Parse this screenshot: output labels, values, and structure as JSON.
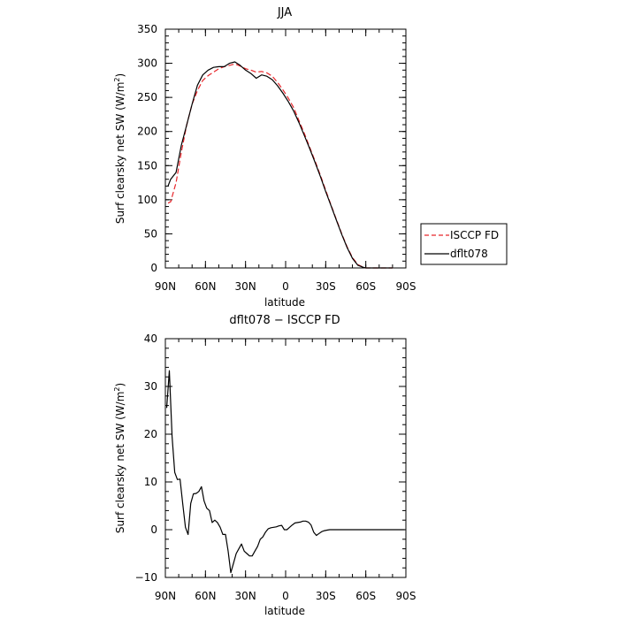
{
  "chart_data": [
    {
      "type": "line",
      "title": "JJA",
      "xlabel": "latitude",
      "ylabel": "Surf clearsky net SW (W/m",
      "ylabel_sup": "2",
      "ylabel_close": ")",
      "xlim": [
        90,
        -90
      ],
      "ylim": [
        0,
        350
      ],
      "x_ticks": [
        90,
        60,
        30,
        0,
        -30,
        -60,
        -90
      ],
      "x_tick_labels": [
        "90N",
        "60N",
        "30N",
        "0",
        "30S",
        "60S",
        "90S"
      ],
      "y_ticks": [
        0,
        50,
        100,
        150,
        200,
        250,
        300,
        350
      ],
      "y_tick_labels": [
        "0",
        "50",
        "100",
        "150",
        "200",
        "250",
        "300",
        "350"
      ],
      "legend_position": "right",
      "series": [
        {
          "name": "ISCCP FD",
          "color": "#e8262b",
          "dash": "dashed",
          "x": [
            88,
            86,
            82,
            78,
            74,
            70,
            66,
            62,
            58,
            54,
            50,
            46,
            42,
            38,
            34,
            30,
            26,
            22,
            18,
            14,
            10,
            6,
            2,
            -2,
            -6,
            -10,
            -14,
            -18,
            -22,
            -26,
            -30,
            -34,
            -38,
            -42,
            -46,
            -50,
            -54,
            -58,
            -60,
            -62,
            -64,
            -66,
            -68,
            -70,
            -72,
            -74,
            -76,
            -78,
            -80
          ],
          "y": [
            95,
            97,
            125,
            170,
            210,
            240,
            260,
            275,
            282,
            287,
            292,
            295,
            297,
            299,
            296,
            292,
            290,
            287,
            288,
            286,
            281,
            272,
            261,
            249,
            235,
            216,
            197,
            177,
            157,
            136,
            114,
            92,
            71,
            50,
            31,
            15,
            5,
            1,
            0,
            0,
            0,
            0,
            0,
            0,
            0,
            0,
            0,
            0,
            0
          ]
        },
        {
          "name": "dflt078",
          "color": "#000000",
          "dash": "solid",
          "x": [
            88,
            86,
            82,
            78,
            74,
            70,
            66,
            62,
            58,
            54,
            50,
            46,
            42,
            38,
            34,
            30,
            26,
            22,
            18,
            14,
            10,
            6,
            2,
            -2,
            -6,
            -10,
            -14,
            -18,
            -22,
            -26,
            -30,
            -34,
            -38,
            -42,
            -46,
            -50,
            -54,
            -58,
            -60,
            -62,
            -64,
            -66,
            -68,
            -70,
            -72,
            -74,
            -76,
            -78,
            -80
          ],
          "y": [
            120,
            130,
            140,
            180,
            210,
            240,
            268,
            283,
            290,
            294,
            295,
            295,
            300,
            302,
            297,
            290,
            285,
            278,
            283,
            281,
            276,
            267,
            256,
            244,
            230,
            213,
            194,
            175,
            155,
            134,
            112,
            91,
            70,
            49,
            30,
            14,
            4,
            1,
            0,
            0,
            0,
            0,
            0,
            0,
            0,
            0,
            0,
            0,
            0
          ]
        }
      ]
    },
    {
      "type": "line",
      "title": "dflt078 − ISCCP FD",
      "xlabel": "latitude",
      "ylabel": "Surf clearsky net SW (W/m",
      "ylabel_sup": "2",
      "ylabel_close": ")",
      "xlim": [
        90,
        -90
      ],
      "ylim": [
        -10,
        40
      ],
      "x_ticks": [
        90,
        60,
        30,
        0,
        -30,
        -60,
        -90
      ],
      "x_tick_labels": [
        "90N",
        "60N",
        "30N",
        "0",
        "30S",
        "60S",
        "90S"
      ],
      "y_ticks": [
        -10,
        0,
        10,
        20,
        30,
        40
      ],
      "y_tick_labels": [
        "−10",
        "0",
        "10",
        "20",
        "30",
        "40"
      ],
      "series": [
        {
          "color": "#000000",
          "dash": "solid",
          "x": [
            89,
            87,
            85,
            83,
            81,
            79,
            77,
            75,
            73,
            71,
            69,
            67,
            65,
            63,
            61,
            59,
            57,
            55,
            53,
            51,
            49,
            47,
            45,
            43,
            41,
            39,
            37,
            35,
            33,
            31,
            29,
            27,
            25,
            23,
            21,
            19,
            17,
            15,
            13,
            11,
            9,
            7,
            5,
            3,
            1,
            -1,
            -3,
            -5,
            -7,
            -9,
            -11,
            -13,
            -15,
            -17,
            -19,
            -21,
            -23,
            -25,
            -27,
            -29,
            -31,
            -33,
            -35,
            -37,
            -39,
            -41,
            -43,
            -45,
            -47,
            -49,
            -51,
            -53,
            -55,
            -57,
            -59,
            -61,
            -63,
            -65,
            -67,
            -69,
            -71,
            -73,
            -75,
            -77,
            -79,
            -81,
            -83,
            -85,
            -87,
            -89
          ],
          "y": [
            25.5,
            33.3,
            19.5,
            12.0,
            10.5,
            10.6,
            5.5,
            0.5,
            -1.0,
            5.5,
            7.5,
            7.6,
            8.0,
            9.0,
            6.0,
            4.5,
            4.0,
            1.5,
            2.0,
            1.5,
            0.5,
            -1.0,
            -1.0,
            -4.5,
            -9.0,
            -7.0,
            -5.0,
            -4.0,
            -3.0,
            -4.5,
            -5.0,
            -5.5,
            -5.5,
            -4.5,
            -3.5,
            -2.0,
            -1.5,
            -0.5,
            0.2,
            0.4,
            0.5,
            0.6,
            0.8,
            0.9,
            0.0,
            0.0,
            0.5,
            1.0,
            1.4,
            1.5,
            1.6,
            1.8,
            1.8,
            1.6,
            1.0,
            -0.5,
            -1.2,
            -0.8,
            -0.4,
            -0.2,
            -0.1,
            0.0,
            0.0,
            0.0,
            0.0,
            0.0,
            0.0,
            0.0,
            0.0,
            0.0,
            0.0,
            0.0,
            0.0,
            0.0,
            0.0,
            0.0,
            0.0,
            0.0,
            0.0,
            0.0,
            0.0,
            0.0,
            0.0,
            0.0,
            0.0,
            0.0,
            0.0,
            0.0,
            0.0,
            0.0
          ]
        }
      ]
    }
  ]
}
